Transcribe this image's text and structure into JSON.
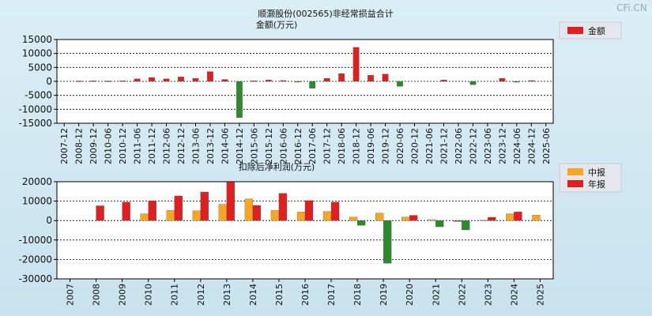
{
  "watermark": "CFi.CN",
  "chart_data": [
    {
      "type": "bar",
      "title": "顺灏股份(002565)非经常损益合计",
      "subtitle": "金额(万元)",
      "legend": {
        "position": "top-right",
        "entries": [
          {
            "name": "金额",
            "color": "#e02020"
          }
        ]
      },
      "ylim": [
        -15000,
        15000
      ],
      "yticks": [
        15000,
        10000,
        5000,
        0,
        -5000,
        -10000,
        -15000
      ],
      "grid": true,
      "positive_color": "#e02020",
      "negative_color": "#2f8a2f",
      "categories": [
        "2007-12",
        "2008-12",
        "2009-12",
        "2010-06",
        "2010-12",
        "2011-06",
        "2011-12",
        "2012-06",
        "2012-12",
        "2013-06",
        "2013-12",
        "2014-06",
        "2014-12",
        "2015-06",
        "2015-12",
        "2016-06",
        "2016-12",
        "2017-06",
        "2017-12",
        "2018-06",
        "2018-12",
        "2019-06",
        "2019-12",
        "2020-06",
        "2020-12",
        "2021-06",
        "2021-12",
        "2022-06",
        "2022-12",
        "2023-06",
        "2023-12",
        "2024-06",
        "2024-12",
        "2025-06"
      ],
      "series": [
        {
          "name": "金额",
          "values": [
            0,
            150,
            200,
            150,
            200,
            900,
            1400,
            900,
            1600,
            1100,
            3500,
            700,
            -13000,
            200,
            500,
            300,
            -200,
            -2500,
            1100,
            2800,
            12200,
            2200,
            2600,
            -1800,
            0,
            0,
            500,
            0,
            -1200,
            0,
            1100,
            -300,
            300,
            0
          ]
        }
      ]
    },
    {
      "type": "bar",
      "title": "扣除后净利润(万元)",
      "legend": {
        "position": "top-right",
        "entries": [
          {
            "name": "中报",
            "color": "#f5a623"
          },
          {
            "name": "年报",
            "color": "#e02020"
          }
        ]
      },
      "ylim": [
        -30000,
        20000
      ],
      "yticks": [
        20000,
        10000,
        0,
        -10000,
        -20000,
        -30000
      ],
      "grid": true,
      "mid_color": "#f5a623",
      "annual_color": "#e02020",
      "negative_color": "#2f8a2f",
      "categories": [
        "2007",
        "2008",
        "2009",
        "2010",
        "2011",
        "2012",
        "2013",
        "2014",
        "2015",
        "2016",
        "2017",
        "2018",
        "2019",
        "2020",
        "2021",
        "2022",
        "2023",
        "2024",
        "2025"
      ],
      "series": [
        {
          "name": "中报",
          "values": [
            null,
            null,
            null,
            3500,
            5200,
            5100,
            8400,
            11200,
            5200,
            4400,
            4700,
            1800,
            3800,
            1800,
            500,
            -500,
            200,
            3500,
            2800
          ]
        },
        {
          "name": "年报",
          "values": [
            null,
            7600,
            9500,
            10200,
            12700,
            14700,
            19800,
            7800,
            14000,
            10300,
            9500,
            -2500,
            -22000,
            2700,
            -3200,
            -4800,
            1700,
            4500,
            null
          ]
        }
      ]
    }
  ]
}
